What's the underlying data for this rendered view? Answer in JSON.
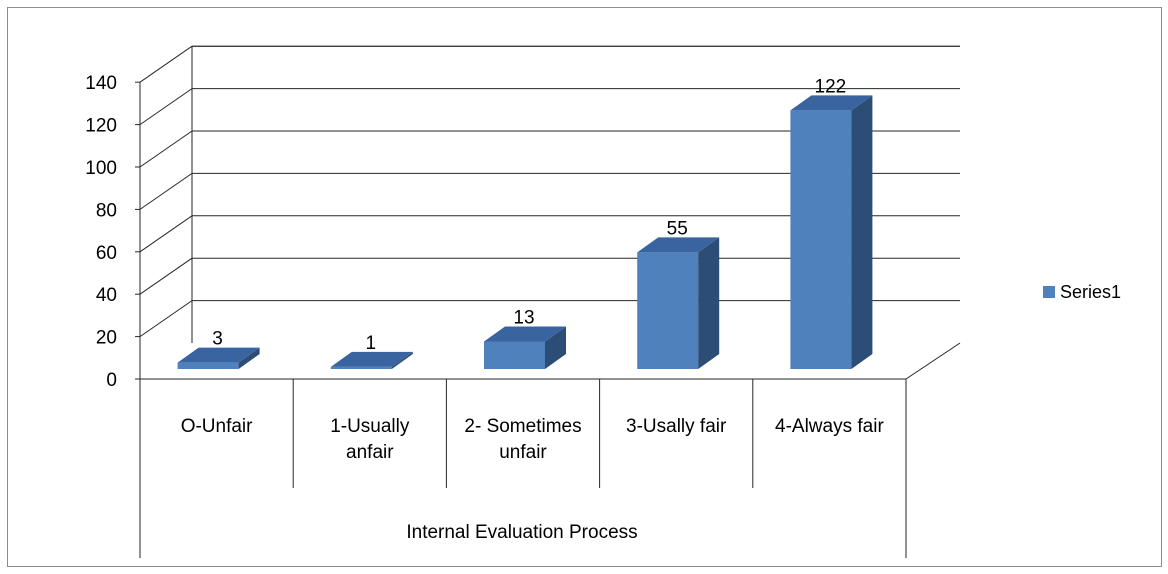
{
  "chart_data": {
    "type": "bar",
    "categories": [
      [
        "O-Unfair"
      ],
      [
        "1-Usually",
        "anfair"
      ],
      [
        "2- Sometimes",
        "unfair"
      ],
      [
        "3-Usally fair"
      ],
      [
        "4-Always fair"
      ]
    ],
    "series": [
      {
        "name": "Series1",
        "values": [
          3,
          1,
          13,
          55,
          122
        ],
        "color": "#4f81bd"
      }
    ],
    "data_labels": [
      "3",
      "1",
      "13",
      "55",
      "122"
    ],
    "y_ticks": [
      "0",
      "20",
      "40",
      "60",
      "80",
      "100",
      "120",
      "140"
    ],
    "ylim": [
      0,
      140
    ],
    "xlabel": "Internal Evaluation Process",
    "ylabel": "",
    "title": "",
    "legend_position": "right",
    "grid": true,
    "style": "3d-column"
  }
}
